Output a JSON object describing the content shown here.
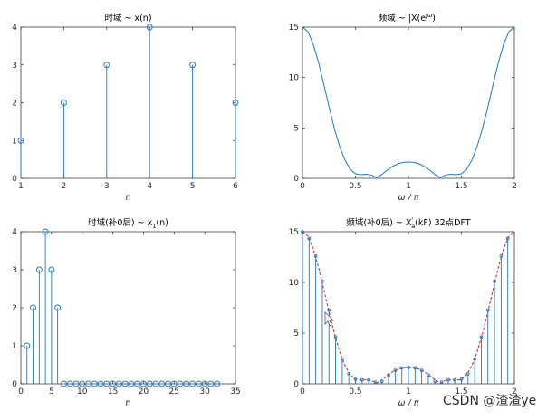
{
  "watermark": "CSDN @渣渣ye",
  "colors": {
    "stem": "#1f77c4",
    "dashed": "#d6321e",
    "axis": "#262626"
  },
  "chart_data": [
    {
      "id": "p1",
      "type": "stem",
      "title": "时域 ~ x(n)",
      "xlabel": "n",
      "xlim": [
        1,
        6
      ],
      "ylim": [
        0,
        4
      ],
      "xticks": [
        1,
        2,
        3,
        4,
        5,
        6
      ],
      "yticks": [
        0,
        1,
        2,
        3,
        4
      ],
      "x": [
        1,
        2,
        3,
        4,
        5,
        6
      ],
      "values": [
        1,
        2,
        3,
        4,
        3,
        2
      ]
    },
    {
      "id": "p2",
      "type": "line",
      "title": "频域 ~ |X(e^{jω})|",
      "xlabel": "ω / π",
      "xlim": [
        0,
        2
      ],
      "ylim": [
        0,
        15
      ],
      "xticks": [
        0,
        0.5,
        1,
        1.5,
        2
      ],
      "yticks": [
        0,
        5,
        10,
        15
      ],
      "x": [
        0,
        0.05,
        0.1,
        0.15,
        0.2,
        0.25,
        0.3,
        0.35,
        0.4,
        0.45,
        0.5,
        0.55,
        0.6,
        0.65,
        0.7,
        0.75,
        0.8,
        0.85,
        0.9,
        0.95,
        1.0,
        1.05,
        1.1,
        1.15,
        1.2,
        1.25,
        1.3,
        1.35,
        1.4,
        1.45,
        1.5,
        1.55,
        1.6,
        1.65,
        1.7,
        1.75,
        1.8,
        1.85,
        1.9,
        1.95,
        2.0
      ],
      "values": [
        15.0,
        14.57,
        13.36,
        11.54,
        9.36,
        7.11,
        4.99,
        3.2,
        1.82,
        0.91,
        0.45,
        0.36,
        0.4,
        0.33,
        0.06,
        0.39,
        0.82,
        1.19,
        1.44,
        1.58,
        1.62,
        1.58,
        1.44,
        1.19,
        0.82,
        0.39,
        0.06,
        0.33,
        0.4,
        0.36,
        0.45,
        0.91,
        1.82,
        3.2,
        4.99,
        7.11,
        9.36,
        11.54,
        13.36,
        14.57,
        15.0
      ]
    },
    {
      "id": "p3",
      "type": "stem",
      "title": "时域(补0后) ~ x",
      "title_sub": "1",
      "title_tail": "(n)",
      "xlabel": "n",
      "xlim": [
        0,
        35
      ],
      "ylim": [
        0,
        4
      ],
      "xticks": [
        0,
        5,
        10,
        15,
        20,
        25,
        30,
        35
      ],
      "yticks": [
        0,
        1,
        2,
        3,
        4
      ],
      "x": [
        1,
        2,
        3,
        4,
        5,
        6,
        7,
        8,
        9,
        10,
        11,
        12,
        13,
        14,
        15,
        16,
        17,
        18,
        19,
        20,
        21,
        22,
        23,
        24,
        25,
        26,
        27,
        28,
        29,
        30,
        31,
        32
      ],
      "values": [
        1,
        2,
        3,
        4,
        3,
        2,
        0,
        0,
        0,
        0,
        0,
        0,
        0,
        0,
        0,
        0,
        0,
        0,
        0,
        0,
        0,
        0,
        0,
        0,
        0,
        0,
        0,
        0,
        0,
        0,
        0,
        0
      ]
    },
    {
      "id": "p4",
      "type": "stem",
      "title": "频域(补0后) ~ X",
      "title_sup": "'",
      "title_sub": "a",
      "title_tail": "(kF) 32点DFT",
      "xlabel": "ω / π",
      "xlim": [
        0,
        2
      ],
      "ylim": [
        0,
        15
      ],
      "xticks": [
        0,
        0.5,
        1,
        1.5,
        2
      ],
      "yticks": [
        0,
        5,
        10,
        15
      ],
      "x": [
        0,
        0.0625,
        0.125,
        0.1875,
        0.25,
        0.3125,
        0.375,
        0.4375,
        0.5,
        0.5625,
        0.625,
        0.6875,
        0.75,
        0.8125,
        0.875,
        0.9375,
        1.0,
        1.0625,
        1.125,
        1.1875,
        1.25,
        1.3125,
        1.375,
        1.4375,
        1.5,
        1.5625,
        1.625,
        1.6875,
        1.75,
        1.8125,
        1.875,
        1.9375
      ],
      "values": [
        15.0,
        14.34,
        12.6,
        10.1,
        7.27,
        4.62,
        2.45,
        1.0,
        0.45,
        0.39,
        0.39,
        0.17,
        0.25,
        0.87,
        1.33,
        1.57,
        1.62,
        1.57,
        1.33,
        0.87,
        0.25,
        0.17,
        0.39,
        0.39,
        0.45,
        1.0,
        2.45,
        4.62,
        7.27,
        10.1,
        12.6,
        14.34
      ],
      "envelope_x": [
        0,
        0.05,
        0.1,
        0.15,
        0.2,
        0.25,
        0.3,
        0.35,
        0.4,
        0.45,
        0.5,
        0.55,
        0.6,
        0.65,
        0.7,
        0.75,
        0.8,
        0.85,
        0.9,
        0.95,
        1.0,
        1.05,
        1.1,
        1.15,
        1.2,
        1.25,
        1.3,
        1.35,
        1.4,
        1.45,
        1.5,
        1.55,
        1.6,
        1.65,
        1.7,
        1.75,
        1.8,
        1.85,
        1.9,
        1.95,
        2.0
      ],
      "envelope": [
        15.0,
        14.57,
        13.36,
        11.54,
        9.36,
        7.11,
        4.99,
        3.2,
        1.82,
        0.91,
        0.45,
        0.36,
        0.4,
        0.33,
        0.06,
        0.39,
        0.82,
        1.19,
        1.44,
        1.58,
        1.62,
        1.58,
        1.44,
        1.19,
        0.82,
        0.39,
        0.06,
        0.33,
        0.4,
        0.36,
        0.45,
        0.91,
        1.82,
        3.2,
        4.99,
        7.11,
        9.36,
        11.54,
        13.36,
        14.57,
        15.0
      ]
    }
  ]
}
